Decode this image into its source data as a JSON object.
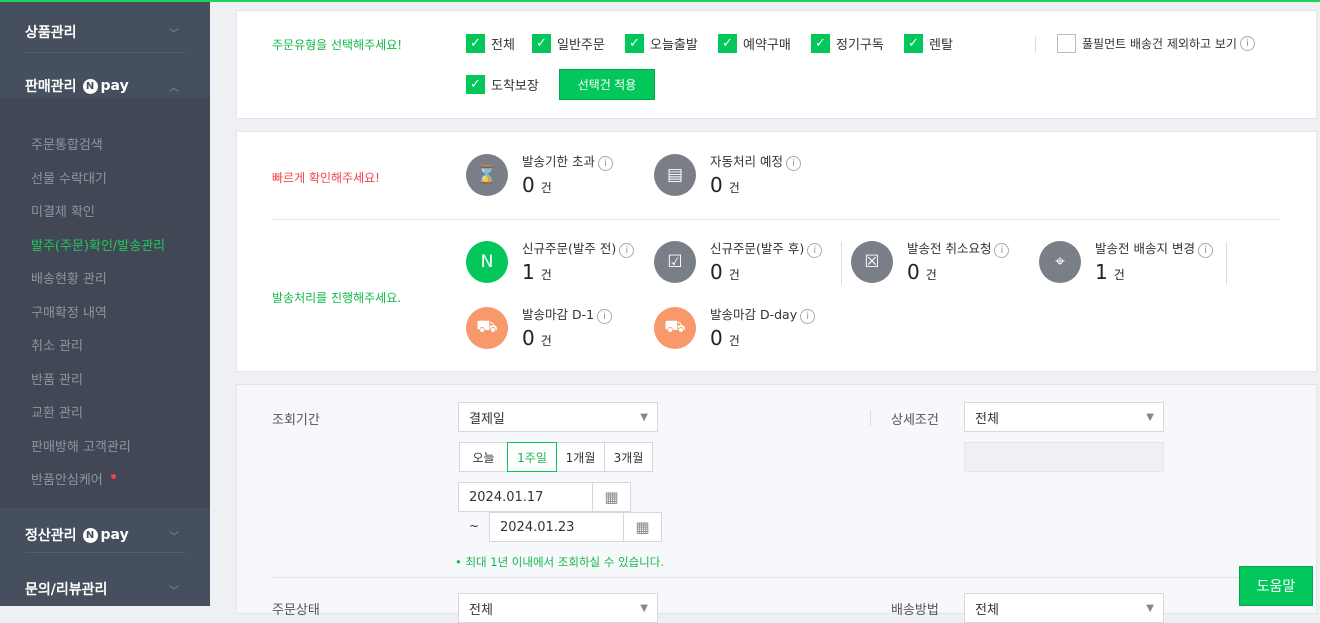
{
  "sidebar": {
    "product": "상품관리",
    "sales": "판매관리",
    "settlement": "정산관리",
    "inquiry": "문의/리뷰관리",
    "npay": "pay",
    "items": [
      "주문통합검색",
      "선물 수락대기",
      "미결제 확인",
      "발주(주문)확인/발송관리",
      "배송현황 관리",
      "구매확정 내역",
      "취소 관리",
      "반품 관리",
      "교환 관리",
      "판매방해 고객관리",
      "반품안심케어"
    ],
    "active_index": 3
  },
  "order_type": {
    "prompt": "주문유형을 선택해주세요!",
    "options": [
      {
        "label": "전체",
        "checked": true
      },
      {
        "label": "일반주문",
        "checked": true
      },
      {
        "label": "오늘출발",
        "checked": true
      },
      {
        "label": "예약구매",
        "checked": true
      },
      {
        "label": "정기구독",
        "checked": true
      },
      {
        "label": "렌탈",
        "checked": true
      },
      {
        "label": "도착보장",
        "checked": true
      }
    ],
    "exclude_fulfillment": {
      "label": "풀필먼트 배송건 제외하고 보기",
      "checked": false
    },
    "apply_button": "선택건 적용"
  },
  "quick": {
    "prompt": "빠르게 확인해주세요!",
    "stats": [
      {
        "label": "발송기한 초과",
        "count": "0",
        "unit": "건",
        "icon": "hourglass-icon"
      },
      {
        "label": "자동처리 예정",
        "count": "0",
        "unit": "건",
        "icon": "document-check-icon"
      }
    ]
  },
  "shipping": {
    "prompt": "발송처리를 진행해주세요.",
    "stats": [
      {
        "label": "신규주문(발주 전)",
        "count": "1",
        "unit": "건",
        "icon": "new-order-icon"
      },
      {
        "label": "신규주문(발주 후)",
        "count": "0",
        "unit": "건",
        "icon": "order-confirmed-icon"
      },
      {
        "label": "발송전 취소요청",
        "count": "0",
        "unit": "건",
        "icon": "box-cancel-icon"
      },
      {
        "label": "발송전 배송지 변경",
        "count": "1",
        "unit": "건",
        "icon": "box-location-icon"
      },
      {
        "label": "발송마감 D-1",
        "count": "0",
        "unit": "건",
        "icon": "truck-d1-icon"
      },
      {
        "label": "발송마감 D-day",
        "count": "0",
        "unit": "건",
        "icon": "truck-bell-icon"
      }
    ]
  },
  "search": {
    "period_label": "조회기간",
    "period_type": "결제일",
    "detail_label": "상세조건",
    "detail_value": "전체",
    "ranges": [
      "오늘",
      "1주일",
      "1개월",
      "3개월"
    ],
    "active_range": 1,
    "start_date": "2024.01.17",
    "tilde": "~",
    "end_date": "2024.01.23",
    "note": "• 최대 1년 이내에서 조회하실 수 있습니다.",
    "status_label": "주문상태",
    "status_value": "전체",
    "delivery_label": "배송방법",
    "delivery_value": "전체"
  },
  "help_button": "도움말",
  "colors": {
    "accent": "#03c75a",
    "sidebar": "#454f5d",
    "alert": "#f0434d",
    "orange": "#f7996a"
  }
}
